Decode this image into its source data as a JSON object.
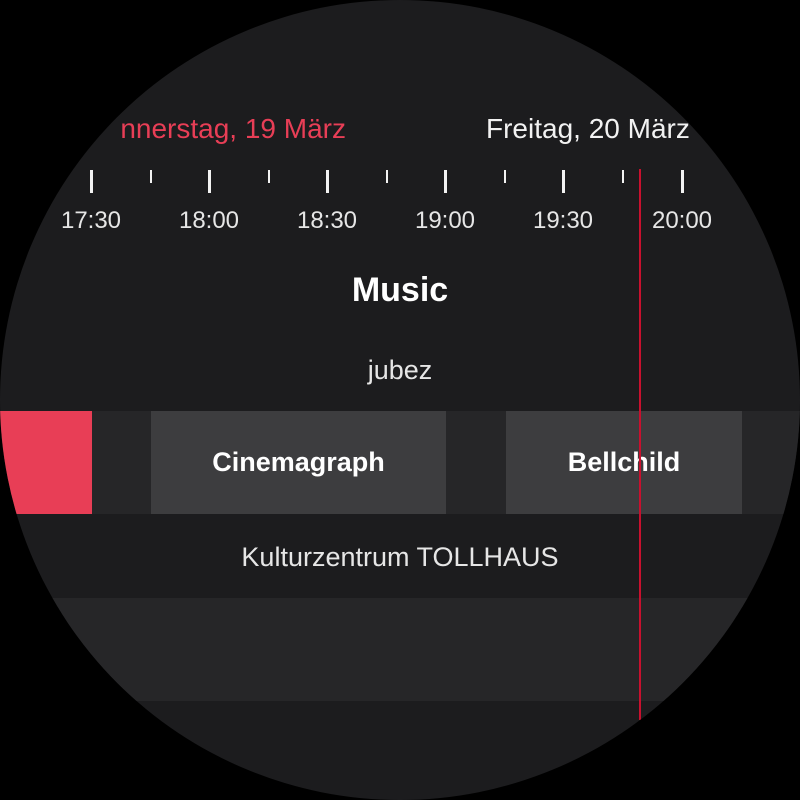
{
  "dates": {
    "today": "nnerstag, 19 März",
    "tomorrow": "Freitag, 20 März"
  },
  "timeline": {
    "labels": [
      "17:30",
      "18:00",
      "18:30",
      "19:00",
      "19:30",
      "20:00"
    ]
  },
  "section": {
    "title": "Music"
  },
  "venues": [
    {
      "name": "jubez",
      "events": [
        {
          "title": ""
        },
        {
          "title": "Cinemagraph"
        },
        {
          "title": "Bellchild"
        }
      ]
    },
    {
      "name": "Kulturzentrum TOLLHAUS",
      "events": []
    }
  ],
  "colors": {
    "accent": "#e83e56",
    "now_line": "#c8102e",
    "background": "#1c1c1e",
    "track": "#262628",
    "event": "#3d3d3f"
  }
}
